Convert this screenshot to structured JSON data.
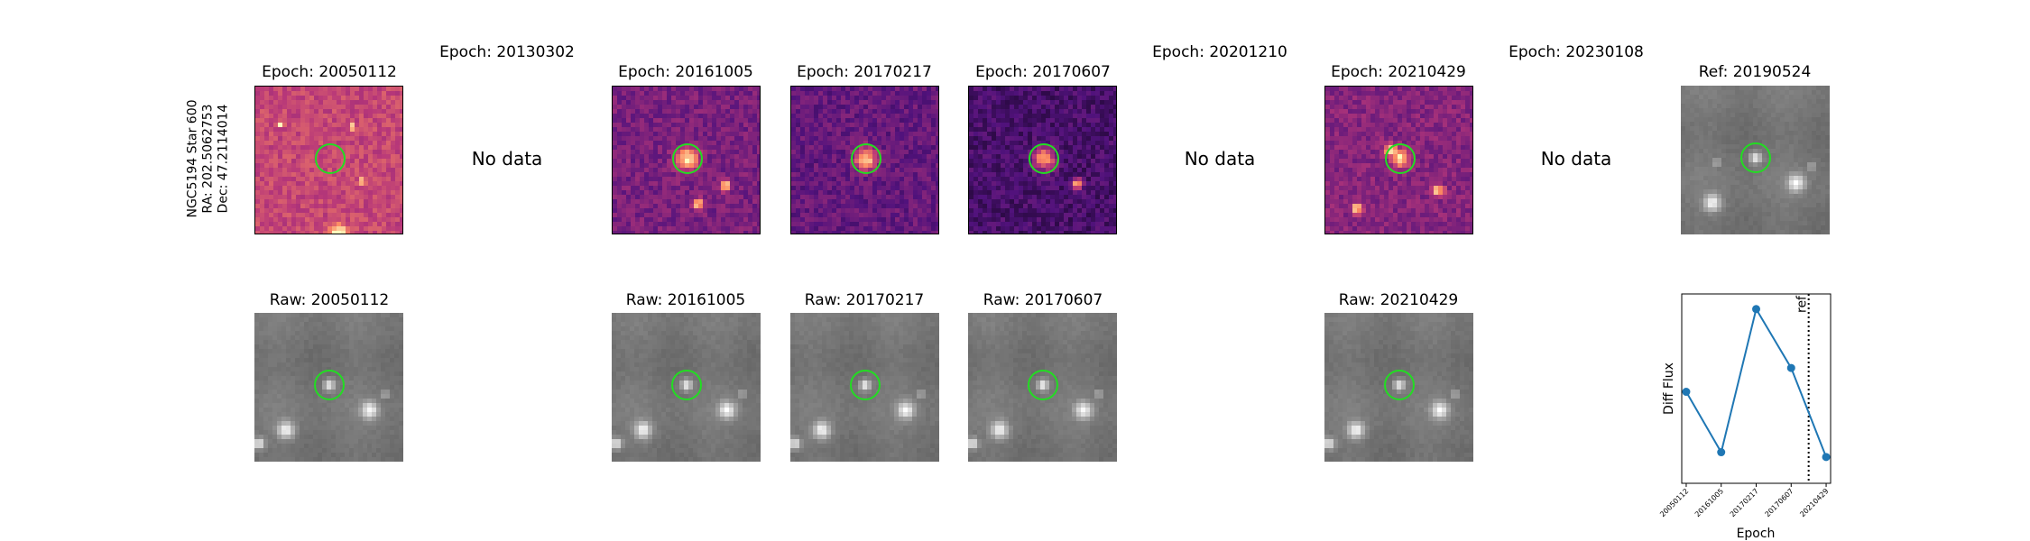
{
  "star_label": {
    "line1": "NGC5194 Star 600",
    "line2": "RA: 202.5062753",
    "line3": "Dec: 47.2114014"
  },
  "top_row": [
    {
      "title": "Epoch: 20050112",
      "has_data": true
    },
    {
      "title": "Epoch: 20130302",
      "has_data": false,
      "nodata_text": "No data"
    },
    {
      "title": "Epoch: 20161005",
      "has_data": true
    },
    {
      "title": "Epoch: 20170217",
      "has_data": true
    },
    {
      "title": "Epoch: 20170607",
      "has_data": true
    },
    {
      "title": "Epoch: 20201210",
      "has_data": false,
      "nodata_text": "No data"
    },
    {
      "title": "Epoch: 20210429",
      "has_data": true
    },
    {
      "title": "Epoch: 20230108",
      "has_data": false,
      "nodata_text": "No data"
    },
    {
      "title": "Ref: 20190524",
      "has_data": true
    }
  ],
  "bottom_row": [
    {
      "title": "Raw: 20050112"
    },
    {
      "title": "Raw: 20161005"
    },
    {
      "title": "Raw: 20170217"
    },
    {
      "title": "Raw: 20170607"
    },
    {
      "title": "Raw: 20210429"
    }
  ],
  "colors": {
    "aperture": "#22dd22",
    "series": "#1f77b4",
    "diff_cmap": "magma",
    "raw_cmap": "gray"
  },
  "chart_data": {
    "type": "line",
    "title": "",
    "xlabel": "Epoch",
    "ylabel": "Diff Flux",
    "x": [
      "20050112",
      "20161005",
      "20170217",
      "20170607",
      "20210429"
    ],
    "series": [
      {
        "values": [
          0.48,
          0.1,
          1.0,
          0.63,
          0.07
        ]
      }
    ],
    "ref_line": {
      "label": "ref",
      "between": [
        "20170607",
        "20210429"
      ]
    },
    "y_ticks_shown": false,
    "grid": false
  }
}
